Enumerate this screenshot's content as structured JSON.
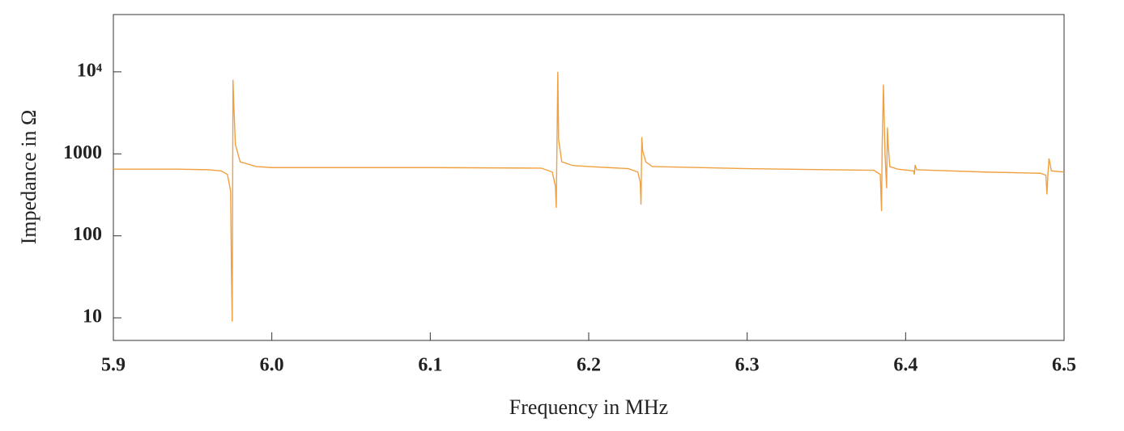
{
  "chart_data": {
    "type": "line",
    "xlabel": "Frequency in MHz",
    "ylabel": "Impedance in Ω",
    "x": [
      5.9,
      5.94,
      5.96,
      5.968,
      5.972,
      5.974,
      5.9745,
      5.975,
      5.9755,
      5.976,
      5.977,
      5.98,
      5.99,
      6.0,
      6.1,
      6.17,
      6.177,
      6.179,
      6.1795,
      6.1805,
      6.181,
      6.183,
      6.19,
      6.2,
      6.225,
      6.231,
      6.2325,
      6.233,
      6.2335,
      6.234,
      6.236,
      6.24,
      6.3,
      6.38,
      6.384,
      6.3848,
      6.3852,
      6.386,
      6.387,
      6.388,
      6.3885,
      6.389,
      6.39,
      6.395,
      6.405,
      6.4055,
      6.406,
      6.407,
      6.45,
      6.485,
      6.4885,
      6.4892,
      6.4898,
      6.4905,
      6.492,
      6.5
    ],
    "values": [
      650,
      650,
      640,
      620,
      560,
      350,
      40,
      9,
      8000,
      4000,
      1300,
      800,
      700,
      680,
      680,
      670,
      600,
      400,
      220,
      10000,
      1500,
      800,
      720,
      700,
      660,
      600,
      450,
      240,
      1600,
      1100,
      800,
      700,
      660,
      630,
      560,
      200,
      1200,
      7000,
      1000,
      380,
      2100,
      1300,
      700,
      650,
      620,
      560,
      730,
      640,
      600,
      580,
      550,
      320,
      560,
      880,
      620,
      600
    ],
    "color": "#f0a040",
    "xlim": [
      5.9,
      6.5
    ],
    "ylim": [
      5.3,
      50000
    ],
    "log_y": true,
    "xticks": [
      5.9,
      {
        "value": 6.0,
        "label": "6.0"
      },
      6.1,
      6.2,
      6.3,
      6.4,
      6.5
    ],
    "yticks": [
      10,
      100,
      1000,
      {
        "value": 10000,
        "label": "10⁴"
      }
    ]
  }
}
